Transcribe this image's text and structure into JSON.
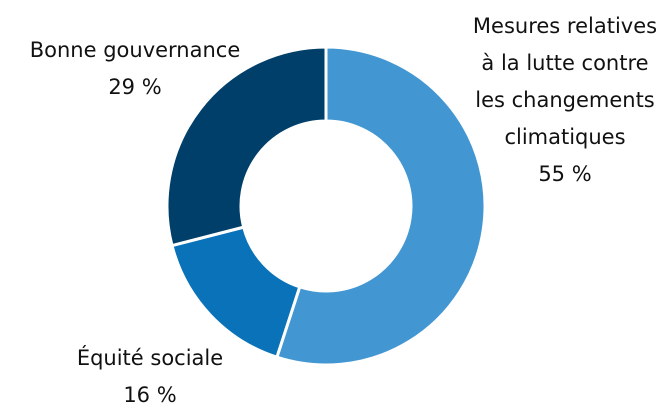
{
  "chart_data": {
    "type": "donut",
    "categories": [
      "Mesures relatives à la lutte contre les changements climatiques",
      "Équité sociale",
      "Bonne gouvernance"
    ],
    "values": [
      55,
      16,
      29
    ],
    "value_labels": [
      "55 %",
      "16 %",
      "29 %"
    ],
    "colors": [
      "#4296d2",
      "#0a72b8",
      "#003f69"
    ]
  }
}
